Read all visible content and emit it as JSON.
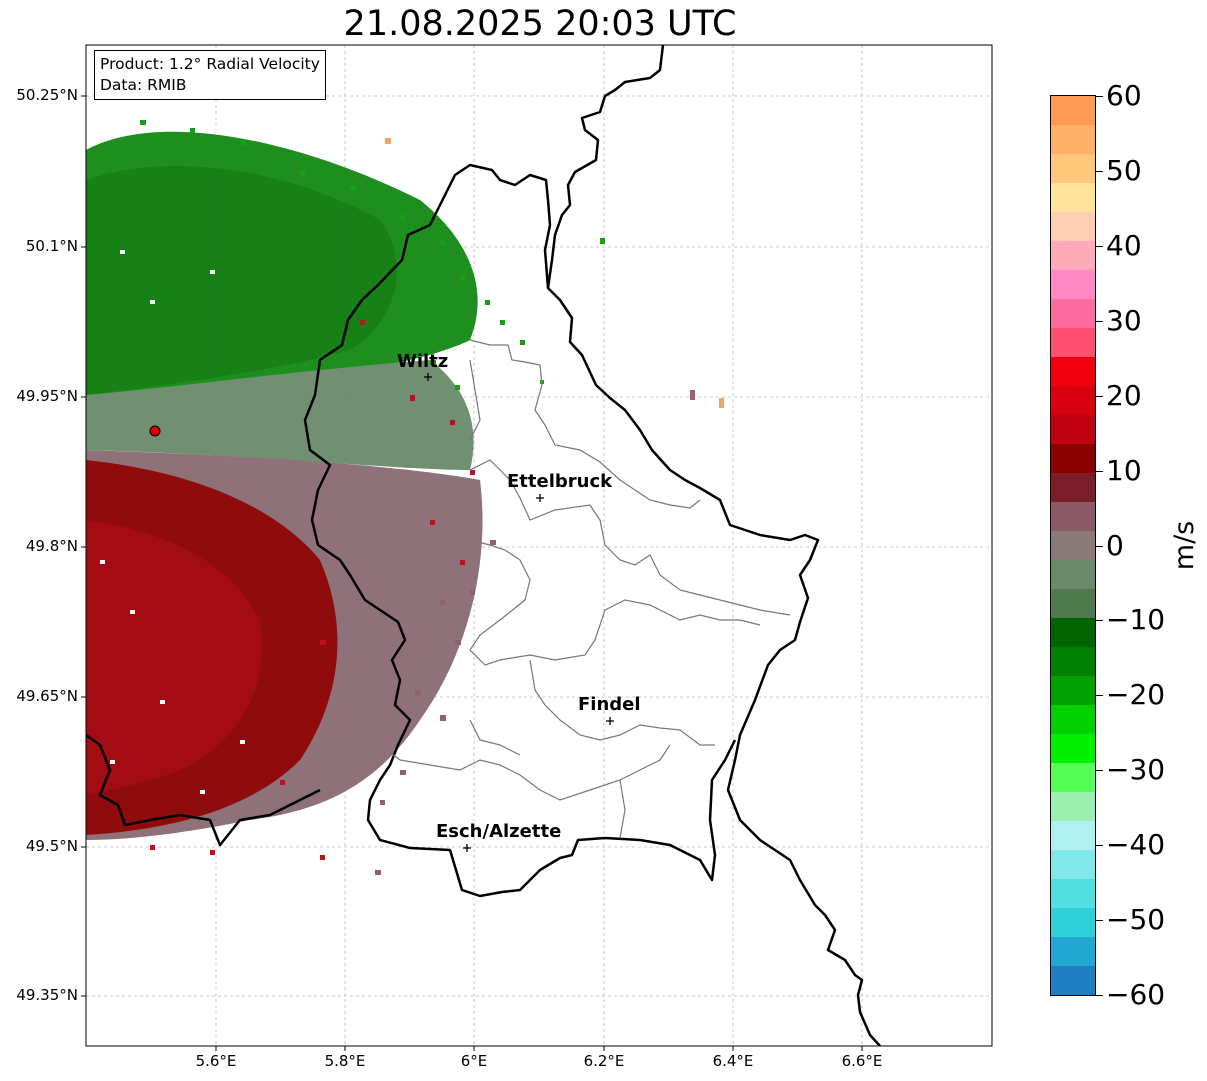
{
  "title": "21.08.2025 20:03 UTC",
  "info": {
    "product": "Product: 1.2° Radial Velocity",
    "data_source": "Data: RMIB"
  },
  "map": {
    "lat_ticks": [
      "50.25°N",
      "50.1°N",
      "49.95°N",
      "49.8°N",
      "49.65°N",
      "49.5°N",
      "49.35°N"
    ],
    "lon_ticks": [
      "5.6°E",
      "5.8°E",
      "6°E",
      "6.2°E",
      "6.4°E",
      "6.6°E"
    ],
    "cities": [
      {
        "name": "Wiltz"
      },
      {
        "name": "Ettelbruck"
      },
      {
        "name": "Findel"
      },
      {
        "name": "Esch/Alzette"
      }
    ],
    "radar_site_color": "#ff0000"
  },
  "colorbar": {
    "unit": "m/s",
    "ticks": [
      "60",
      "50",
      "40",
      "30",
      "20",
      "10",
      "0",
      "−10",
      "−20",
      "−30",
      "−40",
      "−50",
      "−60"
    ],
    "colors": [
      "#ff9a55",
      "#ffb066",
      "#ffc77c",
      "#ffe49a",
      "#ffcfb4",
      "#ffaab9",
      "#ff88c5",
      "#ff6aa0",
      "#ff5070",
      "#f20010",
      "#d80010",
      "#bf0010",
      "#8b0000",
      "#7a1f2a",
      "#8b5a66",
      "#8a7a7a",
      "#6a8a6a",
      "#4e7a4e",
      "#006400",
      "#008000",
      "#00a000",
      "#00d000",
      "#00f000",
      "#55ff55",
      "#9af0b0",
      "#b0f0f0",
      "#80e8e8",
      "#50e0e0",
      "#30d0d8",
      "#20a8d0",
      "#1e7fc0"
    ]
  }
}
